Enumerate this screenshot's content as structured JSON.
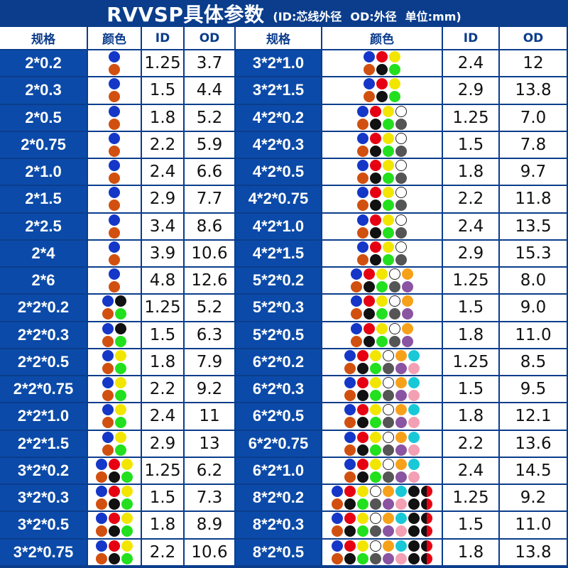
{
  "header": {
    "title": "RVVSP具体参数",
    "legend_id": "(ID:芯线外径",
    "legend_od": "OD:外径",
    "legend_unit": "单位:mm)"
  },
  "columns": {
    "spec": "规格",
    "color": "颜色",
    "id": "ID",
    "od": "OD"
  },
  "color_hex": {
    "blue": "#1437c8",
    "brown": "#d2500f",
    "red": "#e60012",
    "black": "#111111",
    "yellow": "#f2e600",
    "green": "#22e01e",
    "white": "#ffffff",
    "gray": "#555555",
    "orange": "#f7a11a",
    "purple": "#8a54a2",
    "cyan": "#19c8d6",
    "pink": "#f4a0b4",
    "redblack": "#e60012"
  },
  "palettes": {
    "p1": [
      [
        "blue",
        "brown"
      ]
    ],
    "p2": [
      [
        "blue",
        "brown"
      ],
      [
        "black",
        "green"
      ]
    ],
    "p2b": [
      [
        "blue",
        "brown"
      ],
      [
        "yellow",
        "green"
      ]
    ],
    "p3": [
      [
        "blue",
        "brown"
      ],
      [
        "red",
        "black"
      ],
      [
        "yellow",
        "green"
      ]
    ],
    "p4": [
      [
        "blue",
        "brown"
      ],
      [
        "red",
        "black"
      ],
      [
        "yellow",
        "green"
      ],
      [
        "white",
        "gray"
      ]
    ],
    "p5": [
      [
        "blue",
        "brown"
      ],
      [
        "red",
        "black"
      ],
      [
        "yellow",
        "green"
      ],
      [
        "white",
        "gray"
      ],
      [
        "orange",
        "purple"
      ]
    ],
    "p6": [
      [
        "blue",
        "brown"
      ],
      [
        "red",
        "black"
      ],
      [
        "yellow",
        "green"
      ],
      [
        "white",
        "gray"
      ],
      [
        "orange",
        "purple"
      ],
      [
        "cyan",
        "pink"
      ]
    ],
    "p8": [
      [
        "blue",
        "brown"
      ],
      [
        "red",
        "black"
      ],
      [
        "yellow",
        "green"
      ],
      [
        "white",
        "gray"
      ],
      [
        "orange",
        "purple"
      ],
      [
        "cyan",
        "pink"
      ],
      [
        "black",
        "black"
      ],
      [
        "redblack",
        "redblack"
      ]
    ]
  },
  "left_rows": [
    {
      "spec": "2*0.2",
      "palette": "p1",
      "id": "1.25",
      "od": "3.7"
    },
    {
      "spec": "2*0.3",
      "palette": "p1",
      "id": "1.5",
      "od": "4.4"
    },
    {
      "spec": "2*0.5",
      "palette": "p1",
      "id": "1.8",
      "od": "5.2"
    },
    {
      "spec": "2*0.75",
      "palette": "p1",
      "id": "2.2",
      "od": "5.9"
    },
    {
      "spec": "2*1.0",
      "palette": "p1",
      "id": "2.4",
      "od": "6.6"
    },
    {
      "spec": "2*1.5",
      "palette": "p1",
      "id": "2.9",
      "od": "7.7"
    },
    {
      "spec": "2*2.5",
      "palette": "p1",
      "id": "3.4",
      "od": "8.6"
    },
    {
      "spec": "2*4",
      "palette": "p1",
      "id": "3.9",
      "od": "10.6"
    },
    {
      "spec": "2*6",
      "palette": "p1",
      "id": "4.8",
      "od": "12.6"
    },
    {
      "spec": "2*2*0.2",
      "palette": "p2",
      "id": "1.25",
      "od": "5.2"
    },
    {
      "spec": "2*2*0.3",
      "palette": "p2",
      "id": "1.5",
      "od": "6.3"
    },
    {
      "spec": "2*2*0.5",
      "palette": "p2b",
      "id": "1.8",
      "od": "7.9"
    },
    {
      "spec": "2*2*0.75",
      "palette": "p2b",
      "id": "2.2",
      "od": "9.2"
    },
    {
      "spec": "2*2*1.0",
      "palette": "p2b",
      "id": "2.4",
      "od": "11"
    },
    {
      "spec": "2*2*1.5",
      "palette": "p2b",
      "id": "2.9",
      "od": "13"
    },
    {
      "spec": "3*2*0.2",
      "palette": "p3",
      "id": "1.25",
      "od": "6.2"
    },
    {
      "spec": "3*2*0.3",
      "palette": "p3",
      "id": "1.5",
      "od": "7.3"
    },
    {
      "spec": "3*2*0.5",
      "palette": "p3",
      "id": "1.8",
      "od": "8.9"
    },
    {
      "spec": "3*2*0.75",
      "palette": "p3",
      "id": "2.2",
      "od": "10.6"
    }
  ],
  "right_rows": [
    {
      "spec": "3*2*1.0",
      "palette": "p3",
      "id": "2.4",
      "od": "12"
    },
    {
      "spec": "3*2*1.5",
      "palette": "p3",
      "id": "2.9",
      "od": "13.8"
    },
    {
      "spec": "4*2*0.2",
      "palette": "p4",
      "id": "1.25",
      "od": "7.0"
    },
    {
      "spec": "4*2*0.3",
      "palette": "p4",
      "id": "1.5",
      "od": "7.8"
    },
    {
      "spec": "4*2*0.5",
      "palette": "p4",
      "id": "1.8",
      "od": "9.7"
    },
    {
      "spec": "4*2*0.75",
      "palette": "p4",
      "id": "2.2",
      "od": "11.8"
    },
    {
      "spec": "4*2*1.0",
      "palette": "p4",
      "id": "2.4",
      "od": "13.5"
    },
    {
      "spec": "4*2*1.5",
      "palette": "p4",
      "id": "2.9",
      "od": "15.3"
    },
    {
      "spec": "5*2*0.2",
      "palette": "p5",
      "id": "1.25",
      "od": "8.0"
    },
    {
      "spec": "5*2*0.3",
      "palette": "p5",
      "id": "1.5",
      "od": "9.0"
    },
    {
      "spec": "5*2*0.5",
      "palette": "p5",
      "id": "1.8",
      "od": "11.0"
    },
    {
      "spec": "6*2*0.2",
      "palette": "p6",
      "id": "1.25",
      "od": "8.5"
    },
    {
      "spec": "6*2*0.3",
      "palette": "p6",
      "id": "1.5",
      "od": "9.5"
    },
    {
      "spec": "6*2*0.5",
      "palette": "p6",
      "id": "1.8",
      "od": "12.1"
    },
    {
      "spec": "6*2*0.75",
      "palette": "p6",
      "id": "2.2",
      "od": "13.6"
    },
    {
      "spec": "6*2*1.0",
      "palette": "p6",
      "id": "2.4",
      "od": "14.5"
    },
    {
      "spec": "8*2*0.2",
      "palette": "p8",
      "id": "1.25",
      "od": "9.2"
    },
    {
      "spec": "8*2*0.3",
      "palette": "p8",
      "id": "1.5",
      "od": "11.0"
    },
    {
      "spec": "8*2*0.5",
      "palette": "p8",
      "id": "1.8",
      "od": "13.8"
    }
  ]
}
